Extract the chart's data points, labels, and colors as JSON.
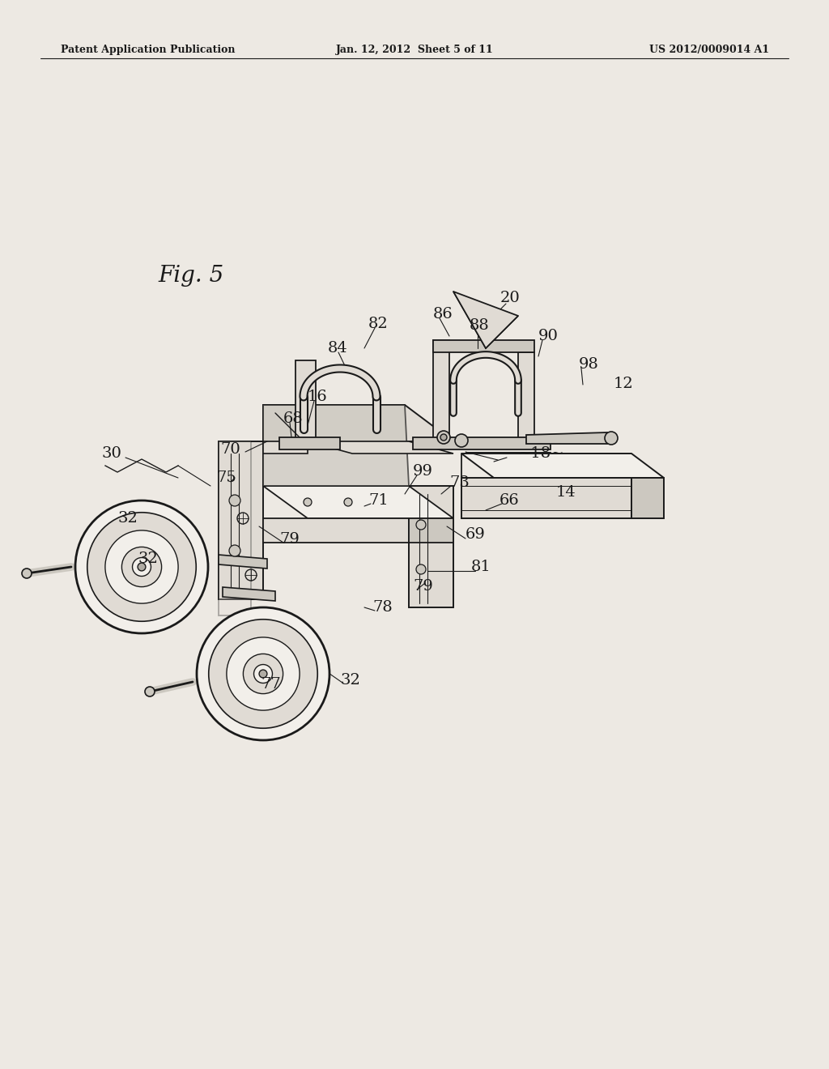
{
  "bg_color": "#ede9e3",
  "header_text_left": "Patent Application Publication",
  "header_text_mid": "Jan. 12, 2012  Sheet 5 of 11",
  "header_text_right": "US 2012/0009014 A1",
  "fig_label": "Fig. 5",
  "line_color": "#1a1a1a",
  "text_color": "#1a1a1a",
  "fill_light": "#e0dbd4",
  "fill_mid": "#ccc8c0",
  "fill_dark": "#b0aca4",
  "fill_white": "#f2efea",
  "header_fontsize": 9,
  "label_fontsize": 14,
  "figlabel_fontsize": 20
}
